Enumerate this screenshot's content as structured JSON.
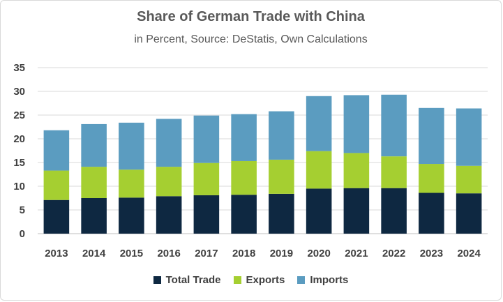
{
  "chart_data": {
    "type": "bar",
    "stacked": true,
    "title": "Share of German Trade with China",
    "subtitle": "in Percent, Source: DeStatis, Own Calculations",
    "xlabel": "",
    "ylabel": "",
    "ylim": [
      0,
      35
    ],
    "yticks": [
      "0",
      "5",
      "10",
      "15",
      "20",
      "25",
      "30",
      "35"
    ],
    "grid": true,
    "legend_position": "bottom",
    "categories": [
      "2013",
      "2014",
      "2015",
      "2016",
      "2017",
      "2018",
      "2019",
      "2020",
      "2021",
      "2022",
      "2023",
      "2024"
    ],
    "series": [
      {
        "name": "Total Trade",
        "color": "#0e2841",
        "values": [
          7.1,
          7.5,
          7.6,
          7.9,
          8.1,
          8.2,
          8.4,
          9.5,
          9.6,
          9.6,
          8.6,
          8.5
        ]
      },
      {
        "name": "Exports",
        "color": "#a5cf31",
        "values": [
          6.2,
          6.6,
          5.9,
          6.2,
          6.8,
          7.1,
          7.2,
          7.9,
          7.4,
          6.7,
          6.1,
          5.8
        ]
      },
      {
        "name": "Imports",
        "color": "#5b9cc0",
        "values": [
          8.5,
          9.0,
          9.9,
          10.1,
          10.0,
          9.9,
          10.2,
          11.6,
          12.2,
          13.0,
          11.8,
          12.1
        ]
      }
    ]
  }
}
